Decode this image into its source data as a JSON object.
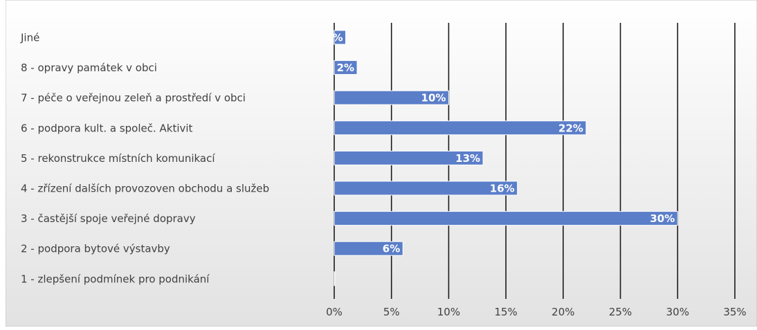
{
  "chart_data": {
    "type": "bar",
    "orientation": "horizontal",
    "categories": [
      "Jiné",
      "8 - opravy památek v obci",
      "7 - péče o veřejnou zeleň a prostředí v obci",
      "6 - podpora kult. a společ. Aktivit",
      "5 - rekonstrukce místních komunikací",
      "4 - zřízení dalších provozoven obchodu a služeb",
      "3 - častější spoje veřejné dopravy",
      "2 - podpora bytové výstavby",
      "1 - zlepšení podmínek pro podnikání"
    ],
    "values": [
      1,
      2,
      10,
      22,
      13,
      16,
      30,
      6,
      0
    ],
    "data_labels": [
      "1%",
      "2%",
      "10%",
      "22%",
      "13%",
      "16%",
      "30%",
      "6%",
      ""
    ],
    "xticks": [
      "0%",
      "5%",
      "10%",
      "15%",
      "20%",
      "25%",
      "30%",
      "35%"
    ],
    "xlim": [
      0,
      35
    ],
    "title": "",
    "xlabel": "",
    "ylabel": "",
    "grid": "vertical",
    "legend": "none",
    "colors": {
      "bar": "#5b7ec9",
      "bar_edge": "#ffffff",
      "background_top": "#ffffff",
      "background_bottom": "#e2e2e2",
      "gridline": "#1a1a1a",
      "frame": "#bfbfbf",
      "text": "#404040",
      "data_label": "#ffffff"
    }
  }
}
